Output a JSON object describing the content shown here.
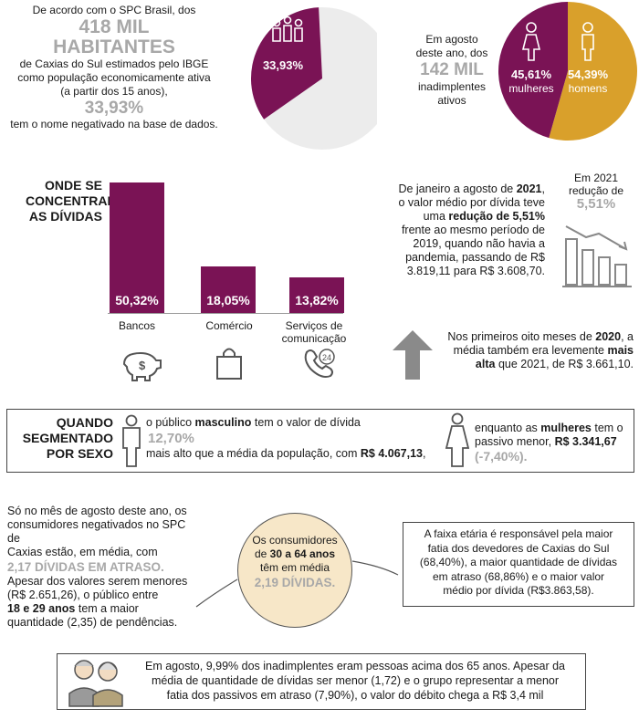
{
  "top_left": {
    "line1": "De acordo com o SPC Brasil, dos",
    "big1": "418 MIL",
    "big2": "HABITANTES",
    "line2": "de Caxias do Sul estimados pelo IBGE",
    "line3": "como população economicamente ativa",
    "line4": "(a partir dos 15 anos),",
    "pct": "33,93%",
    "line5": "tem o nome negativado na base de dados.",
    "pie_label": "33,93%",
    "pie_value": 33.93,
    "pie_color": "#7a1355",
    "pie_rest_color": "#ececec",
    "pie_icon": "people-group-icon"
  },
  "top_right": {
    "line1": "Em agosto",
    "line2": "deste ano, dos",
    "big": "142 MIL",
    "line3": "inadimplentes",
    "line4": "ativos",
    "women_pct": "45,61%",
    "women_label": "mulheres",
    "men_pct": "54,39%",
    "men_label": "homens",
    "women_value": 45.61,
    "men_value": 54.39,
    "women_color": "#7a1355",
    "men_color": "#d9a02b"
  },
  "concentram": {
    "title1": "ONDE SE",
    "title2": "CONCENTRAM",
    "title3": "AS DÍVIDAS",
    "chart_data": {
      "type": "bar",
      "categories": [
        "Bancos",
        "Comércio",
        "Serviços de comunicação"
      ],
      "values": [
        50.32,
        18.05,
        13.82
      ],
      "labels": [
        "50,32%",
        "18,05%",
        "13,82%"
      ]
    },
    "cat1": "Bancos",
    "cat2": "Comércio",
    "cat3a": "Serviços de",
    "cat3b": "comunicação"
  },
  "reducao": {
    "t1": "De janeiro a agosto de",
    "t1b": "2021",
    "t2": "o valor médio por dívida teve",
    "t3a": "uma",
    "t3b": "redução de 5,51%",
    "t4": "frente ao mesmo período de",
    "t5": "2019, quando não havia a",
    "t6": "pandemia, passando de R$",
    "t7": "3.819,11 para R$ 3.608,70.",
    "side1": "Em 2021",
    "side2": "redução de",
    "side_pct": "5,51%",
    "icon": "declining-chart-icon"
  },
  "primeiros": {
    "t1a": "Nos primeiros oito meses de",
    "t1b": "2020",
    "t2a": "média também era levemente",
    "t2b": "mais",
    "t3a": "alta",
    "t3b": "que 2021, de R$ 3.661,10.",
    "icon": "arrow-up-icon"
  },
  "sexo": {
    "title1": "QUANDO",
    "title2": "SEGMENTADO",
    "title3": "POR SEXO",
    "m1a": "o público",
    "m1b": "masculino",
    "m1c": "tem o valor de dívida",
    "m_pct": "12,70%",
    "m2a": "mais alto que a média da população, com",
    "m2b": "R$ 4.067,13",
    "f1a": "enquanto as",
    "f1b": "mulheres",
    "f1c": "tem o",
    "f2a": "passivo menor,",
    "f2b": "R$ 3.341,67",
    "f_pct": "(-7,40%)."
  },
  "agosto": {
    "l1": "Só no mês de agosto deste ano, os",
    "l2": "consumidores negativados no SPC de",
    "l3": "Caxias estão, em média, com",
    "big": "2,17 DÍVIDAS EM ATRASO.",
    "l4": "Apesar dos valores serem menores",
    "l5": "(R$ 2.651,26), o público entre",
    "l6a": "18 e 29 anos",
    "l6b": "tem a maior",
    "l7": "quantidade (2,35) de pendências."
  },
  "circle": {
    "l1": "Os consumidores",
    "l2a": "de",
    "l2b": "30 a 64 anos",
    "l3": "têm em média",
    "big": "2,19 DÍVIDAS."
  },
  "faixa": {
    "l1": "A faixa etária é responsável pela maior",
    "l2": "fatia dos devedores de Caxias do Sul",
    "l3": "(68,40%), a maior quantidade de dívidas",
    "l4": "em atraso (68,86%) e o maior valor",
    "l5": "médio por dívida (R$3.863,58)."
  },
  "idosos": {
    "l1": "Em agosto, 9,99% dos inadimplentes eram pessoas acima dos 65 anos. Apesar da",
    "l2": "média de quantidade de dívidas ser menor (1,72) e o grupo representar a menor",
    "l3": "fatia dos passivos em atraso (7,90%), o valor do débito chega a R$ 3,4 mil",
    "icon": "elderly-couple-icon"
  }
}
